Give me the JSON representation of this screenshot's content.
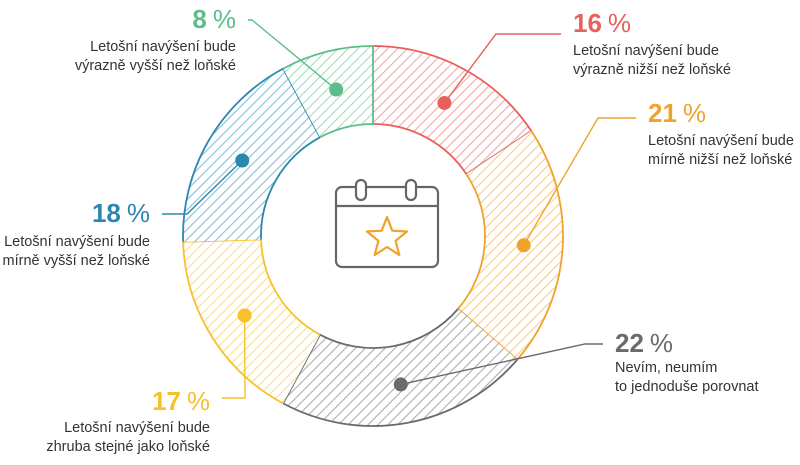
{
  "chart_data": {
    "type": "pie",
    "title": "",
    "slices": [
      {
        "value": 16,
        "value_label": "16",
        "label_line1": "Letošní navýšení bude",
        "label_line2": "výrazně nižší než loňské",
        "color": "#e8605c"
      },
      {
        "value": 21,
        "value_label": "21",
        "label_line1": "Letošní navýšení bude",
        "label_line2": "mírně nižší než loňské",
        "color": "#f0a32a"
      },
      {
        "value": 22,
        "value_label": "22",
        "label_line1": "Nevím, neumím",
        "label_line2": "to jednoduše porovnat",
        "color": "#6b6b6b"
      },
      {
        "value": 17,
        "value_label": "17",
        "label_line1": "Letošní navýšení bude",
        "label_line2": "zhruba stejné jako loňské",
        "color": "#f6c12d"
      },
      {
        "value": 18,
        "value_label": "18",
        "label_line1": "Letošní navýšení bude",
        "label_line2": "mírně vyšší než loňské",
        "color": "#2a88b0"
      },
      {
        "value": 8,
        "value_label": "8",
        "label_line1": "Letošní navýšení bude",
        "label_line2": "výrazně vyšší než loňské",
        "color": "#5cbd8a"
      }
    ],
    "percent_sign": "%",
    "center_icon": "calendar-star-icon",
    "icon_color": "#666666",
    "star_color": "#f0a32a",
    "hatch_opacity": 0.55
  }
}
